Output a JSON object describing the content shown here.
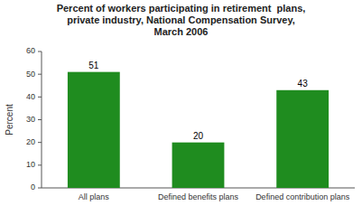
{
  "chart_data": {
    "type": "bar",
    "title": "Percent of workers participating in retirement  plans,\nprivate industry, National Compensation Survey,\nMarch 2006",
    "categories": [
      "All plans",
      "Defined benefits plans",
      "Defined contribution plans"
    ],
    "values": [
      51,
      20,
      43
    ],
    "color": "#1f8c1f",
    "ylabel": "Percent",
    "ylim": [
      0,
      60
    ],
    "yticks": [
      0,
      10,
      20,
      30,
      40,
      50,
      60
    ],
    "data_labels": true,
    "grid": false
  }
}
